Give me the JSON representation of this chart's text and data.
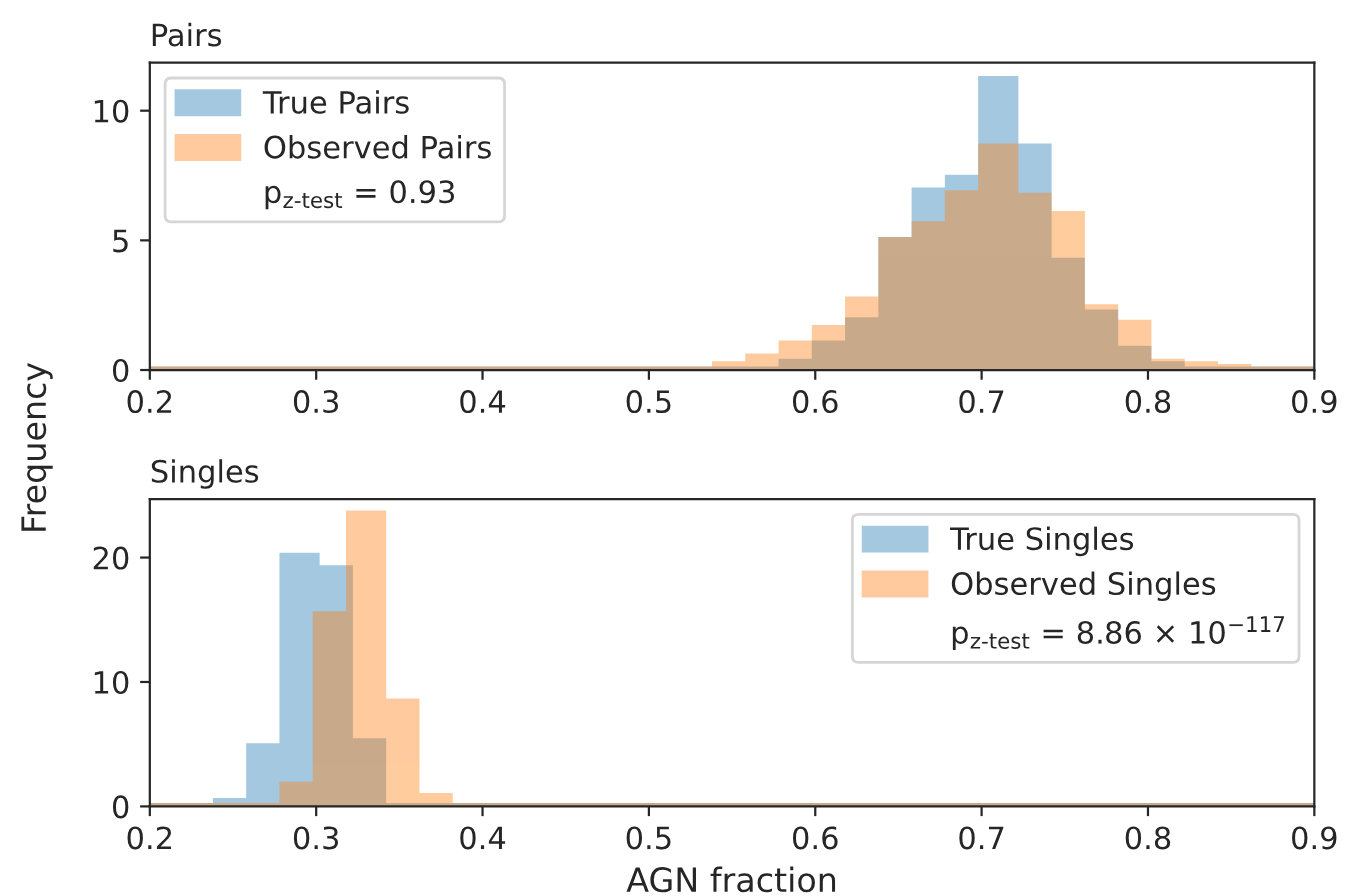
{
  "chart_data": [
    {
      "type": "histogram",
      "title": "Pairs",
      "ylabel": "Frequency",
      "bins": [
        0.2,
        0.22,
        0.24,
        0.26,
        0.28,
        0.3,
        0.32,
        0.34,
        0.36,
        0.38,
        0.4,
        0.42,
        0.44,
        0.46,
        0.48,
        0.5,
        0.52,
        0.54,
        0.56,
        0.58,
        0.6,
        0.62,
        0.64,
        0.66,
        0.68,
        0.7,
        0.72,
        0.74,
        0.76,
        0.78,
        0.8,
        0.82,
        0.84,
        0.86,
        0.88,
        0.9
      ],
      "series": [
        {
          "name": "True Pairs",
          "color": "#1f77b4",
          "values": [
            0,
            0,
            0,
            0,
            0,
            0,
            0,
            0,
            0,
            0,
            0,
            0,
            0,
            0,
            0,
            0,
            0,
            0,
            0,
            0.3,
            1.0,
            1.9,
            5.0,
            6.9,
            7.4,
            11.2,
            8.6,
            4.2,
            2.2,
            0.8,
            0.2,
            0,
            0,
            0,
            0
          ]
        },
        {
          "name": "Observed Pairs",
          "color": "#ff7f0e",
          "values": [
            0,
            0,
            0,
            0,
            0,
            0,
            0,
            0,
            0,
            0,
            0,
            0,
            0,
            0,
            0,
            0,
            0,
            0.2,
            0.5,
            1.0,
            1.6,
            2.7,
            5.0,
            5.6,
            6.8,
            8.6,
            6.7,
            6.0,
            2.4,
            1.8,
            0.3,
            0.2,
            0.1,
            0,
            0
          ]
        }
      ],
      "annotations": [
        "p$_{z-test}$ = 0.93"
      ],
      "legend": "top left",
      "xlim": [
        0.2,
        0.9
      ],
      "xticks": [
        0.2,
        0.3,
        0.4,
        0.5,
        0.6,
        0.7,
        0.8,
        0.9
      ],
      "ylim": [
        0,
        11.85
      ],
      "yticks": [
        0,
        5,
        10
      ]
    },
    {
      "type": "histogram",
      "title": "Singles",
      "xlabel": "AGN fraction",
      "bins": [
        0.2,
        0.22,
        0.24,
        0.26,
        0.28,
        0.3,
        0.32,
        0.34,
        0.36,
        0.38,
        0.4,
        0.42,
        0.44,
        0.46,
        0.48,
        0.5,
        0.52,
        0.54,
        0.56,
        0.58,
        0.6,
        0.62,
        0.64,
        0.66,
        0.68,
        0.7,
        0.72,
        0.74,
        0.76,
        0.78,
        0.8,
        0.82,
        0.84,
        0.86,
        0.88,
        0.9
      ],
      "series": [
        {
          "name": "True Singles",
          "color": "#1f77b4",
          "values": [
            0,
            0,
            0.4,
            4.8,
            20.1,
            19.1,
            5.2,
            0,
            0,
            0,
            0,
            0,
            0,
            0,
            0,
            0,
            0,
            0,
            0,
            0,
            0,
            0,
            0,
            0,
            0,
            0,
            0,
            0,
            0,
            0,
            0,
            0,
            0,
            0,
            0
          ]
        },
        {
          "name": "Observed Singles",
          "color": "#ff7f0e",
          "values": [
            0,
            0,
            0,
            0,
            1.7,
            15.4,
            23.5,
            8.4,
            0.8,
            0,
            0,
            0,
            0,
            0,
            0,
            0,
            0,
            0,
            0,
            0,
            0,
            0,
            0,
            0,
            0,
            0,
            0,
            0,
            0,
            0,
            0,
            0,
            0,
            0,
            0
          ]
        }
      ],
      "annotations": [
        "p$_{z-test}$ = 8.86 × 10$^{−117}$"
      ],
      "legend": "top right",
      "xlim": [
        0.2,
        0.9
      ],
      "xticks": [
        0.2,
        0.3,
        0.4,
        0.5,
        0.6,
        0.7,
        0.8,
        0.9
      ],
      "ylim": [
        0,
        24.7
      ],
      "yticks": [
        0,
        10,
        20
      ]
    }
  ]
}
